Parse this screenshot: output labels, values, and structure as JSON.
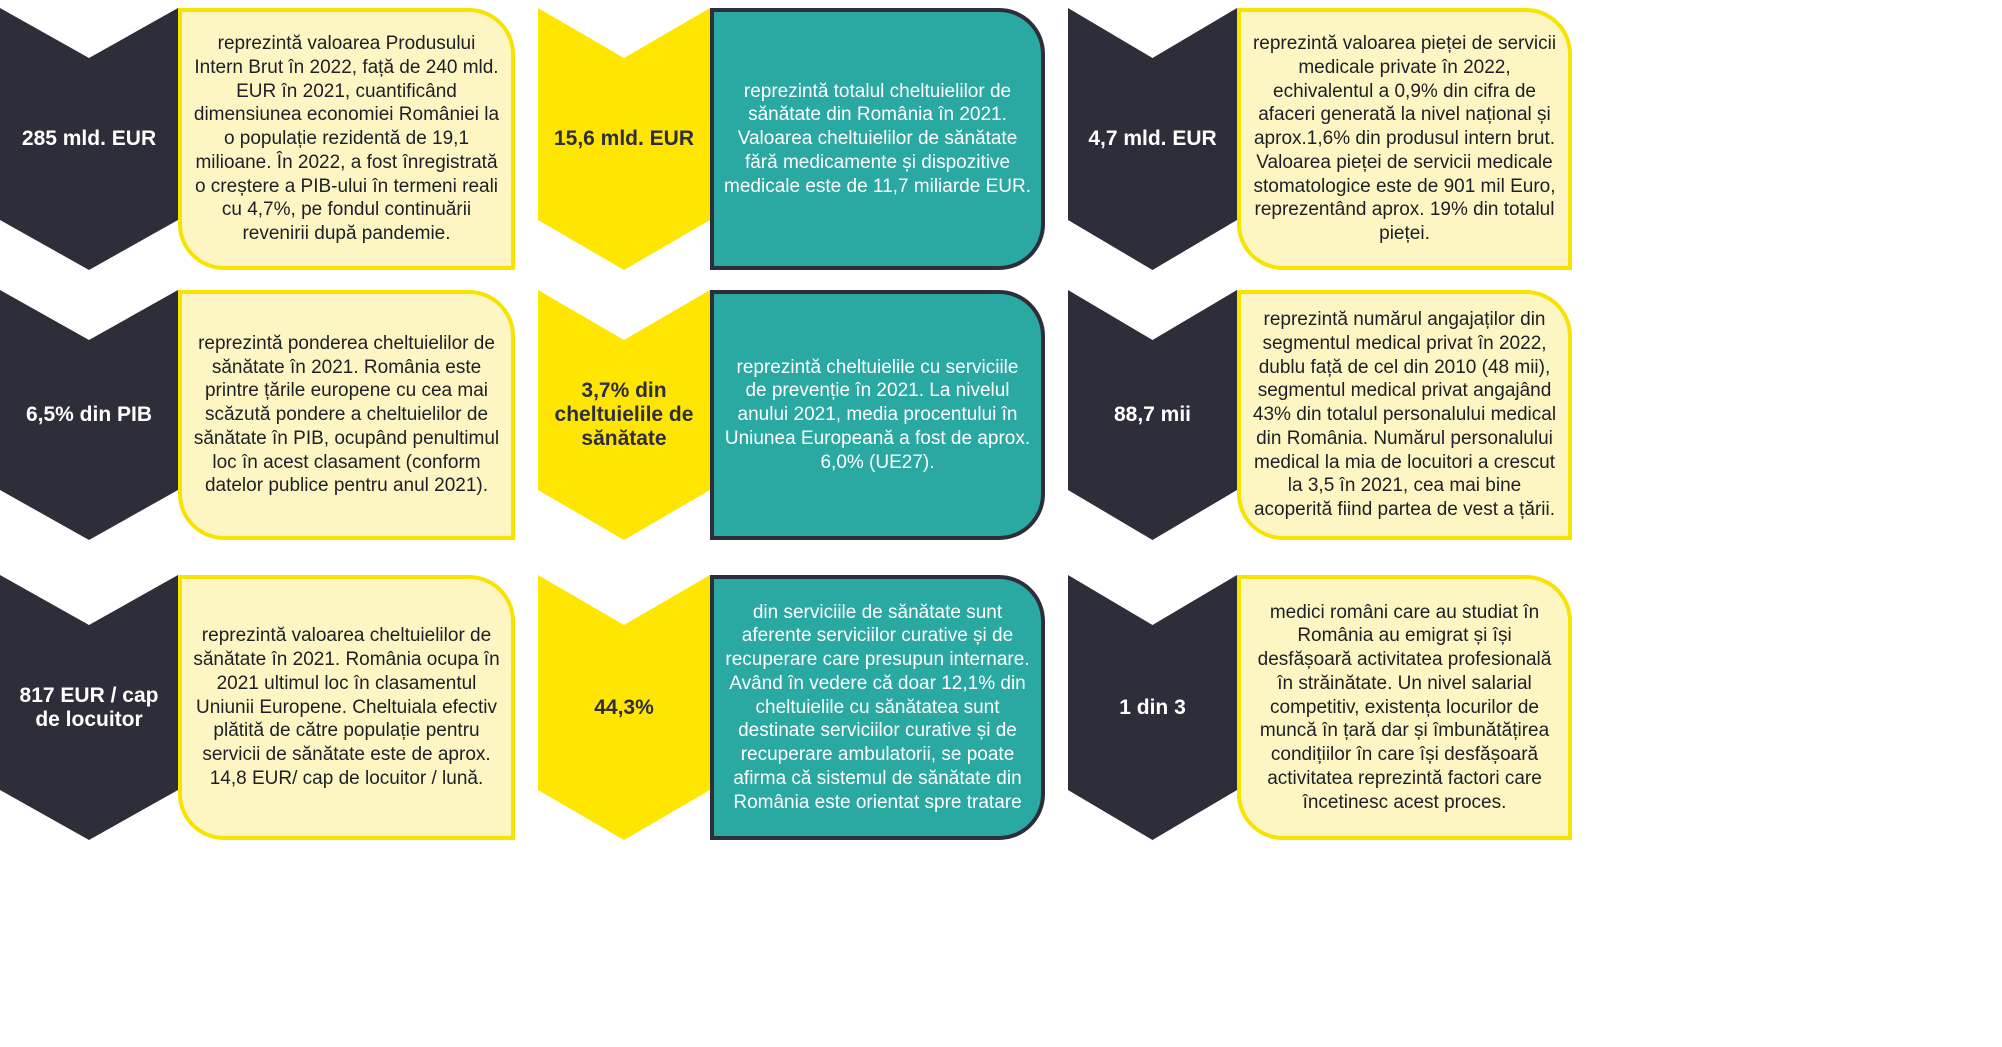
{
  "cells": [
    {
      "stat": "285 mld. EUR",
      "text": "reprezintă valoarea Produsului Intern Brut în 2022, față de 240 mld. EUR în 2021, cuantificând dimensiunea economiei României la o populație rezidentă de 19,1 milioane. În 2022, a fost înregistrată o creștere a PIB-ului în termeni reali cu 4,7%, pe fondul continuării revenirii după pandemie."
    },
    {
      "stat": "15,6 mld. EUR",
      "text": "reprezintă totalul cheltuielilor de sănătate din România în 2021. Valoarea cheltuielilor de sănătate fără medicamente și dispozitive medicale este de 11,7 miliarde EUR."
    },
    {
      "stat": "4,7 mld. EUR",
      "text": "reprezintă valoarea pieței de servicii medicale private în 2022, echivalentul a 0,9% din cifra de afaceri generată la nivel național și aprox.1,6% din produsul intern brut. Valoarea pieței de servicii medicale stomatologice este de 901 mil Euro, reprezentând aprox. 19% din totalul pieței."
    },
    {
      "stat": "6,5% din PIB",
      "text": "reprezintă ponderea cheltuielilor de sănătate în 2021. România este printre țările europene cu cea mai scăzută pondere a cheltuielilor de sănătate în PIB, ocupând penultimul loc în acest clasament (conform datelor publice pentru anul 2021)."
    },
    {
      "stat": "3,7% din cheltuielile de sănătate",
      "text": "reprezintă cheltuielile cu serviciile de prevenție în 2021. La nivelul anului 2021, media procentului în Uniunea Europeană a fost de aprox. 6,0% (UE27)."
    },
    {
      "stat": "88,7 mii",
      "text": "reprezintă numărul angajaților din segmentul medical privat în 2022, dublu față de cel din 2010 (48 mii), segmentul medical privat angajând 43% din totalul personalului medical din România. Numărul personalului medical la mia de locuitori a crescut la 3,5 în 2021, cea mai bine acoperită fiind partea de vest a țării."
    },
    {
      "stat": "817 EUR / cap de locuitor",
      "text": "reprezintă valoarea cheltuielilor de sănătate în 2021. România ocupa în 2021 ultimul loc în clasamentul Uniunii Europene. Cheltuiala efectiv plătită de către populație pentru servicii de sănătate este de aprox. 14,8 EUR/ cap de locuitor / lună."
    },
    {
      "stat": "44,3%",
      "text": "din serviciile de sănătate sunt aferente serviciilor curative și de recuperare care presupun internare. Având în vedere că doar 12,1% din cheltuielile cu sănătatea sunt destinate serviciilor curative și de recuperare ambulatorii, se poate afirma că sistemul de sănătate din România este orientat spre tratare"
    },
    {
      "stat": "1 din 3",
      "text": "medici români care au studiat în România au emigrat și își desfășoară activitatea profesională în străinătate. Un nivel salarial competitiv, existența locurilor de muncă în țară dar și îmbunătățirea condițiilor în care își desfășoară activitatea reprezintă factori care încetinesc acest proces."
    }
  ]
}
